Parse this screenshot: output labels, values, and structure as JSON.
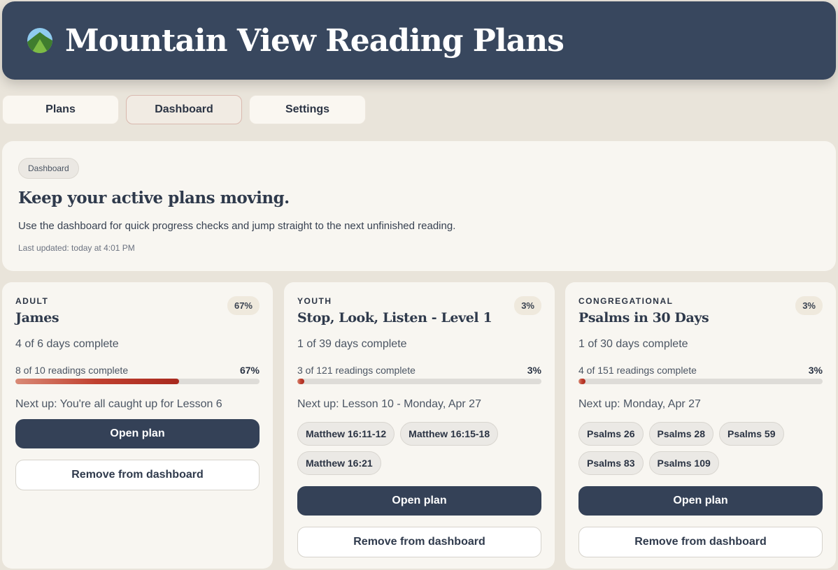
{
  "header": {
    "title": "Mountain View Reading Plans",
    "logo": "mountain-logo"
  },
  "tabs": [
    {
      "label": "Plans"
    },
    {
      "label": "Dashboard",
      "active": true
    },
    {
      "label": "Settings"
    }
  ],
  "hero": {
    "pill": "Dashboard",
    "heading": "Keep your active plans moving.",
    "description": "Use the dashboard for quick progress checks and jump straight to the next unfinished reading.",
    "updated": "Last updated: today at 4:01 PM"
  },
  "colors": {
    "header": "#38475e",
    "primary_button": "#344157",
    "progress": "#c0402f"
  },
  "cards": [
    {
      "category": "ADULT",
      "title": "James",
      "badge": "67%",
      "days": "4 of 6 days complete",
      "readings": "8 of 10 readings complete",
      "percent_label": "67%",
      "progress": 67,
      "next": "Next up: You're all caught up for Lesson 6",
      "chips": [],
      "open": "Open plan",
      "remove": "Remove from dashboard"
    },
    {
      "category": "YOUTH",
      "title": "Stop, Look, Listen - Level 1",
      "badge": "3%",
      "days": "1 of 39 days complete",
      "readings": "3 of 121 readings complete",
      "percent_label": "3%",
      "progress": 3,
      "next": "Next up: Lesson 10 - Monday, Apr 27",
      "chips": [
        "Matthew 16:11-12",
        "Matthew 16:15-18",
        "Matthew 16:21"
      ],
      "open": "Open plan",
      "remove": "Remove from dashboard"
    },
    {
      "category": "CONGREGATIONAL",
      "title": "Psalms in 30 Days",
      "badge": "3%",
      "days": "1 of 30 days complete",
      "readings": "4 of 151 readings complete",
      "percent_label": "3%",
      "progress": 3,
      "next": "Next up: Monday, Apr 27",
      "chips": [
        "Psalms 26",
        "Psalms 28",
        "Psalms 59",
        "Psalms 83",
        "Psalms 109"
      ],
      "open": "Open plan",
      "remove": "Remove from dashboard"
    }
  ]
}
